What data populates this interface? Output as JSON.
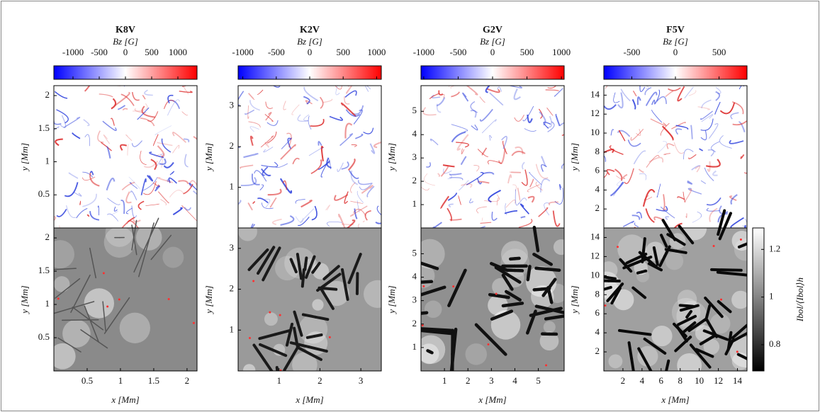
{
  "chart_data": [
    {
      "type": "image",
      "title": "K8V",
      "colorbar_label": "Bz [G]",
      "colorbar_lim": [
        -1365,
        1365
      ],
      "colorbar_ticks": [
        -1000,
        -500,
        0,
        500,
        1000
      ],
      "colorbar_colors": [
        "#0000ff",
        "#ffffff",
        "#ff0000"
      ],
      "xlabel": "x [Mm]",
      "ylabel": "y [Mm]",
      "xlim": [
        0,
        2.15
      ],
      "xticks": [
        0.5,
        1,
        1.5,
        2
      ],
      "ylim": [
        0,
        2.15
      ],
      "yticks": [
        0.5,
        1,
        1.5,
        2
      ]
    },
    {
      "type": "image",
      "title": "K2V",
      "colorbar_label": "Bz [G]",
      "colorbar_lim": [
        -1070,
        1070
      ],
      "colorbar_ticks": [
        -1000,
        -500,
        0,
        500,
        1000
      ],
      "colorbar_colors": [
        "#0000ff",
        "#ffffff",
        "#ff0000"
      ],
      "xlabel": "x [Mm]",
      "ylabel": "y [Mm]",
      "xlim": [
        0,
        3.5
      ],
      "xticks": [
        1,
        2,
        3
      ],
      "ylim": [
        0,
        3.5
      ],
      "yticks": [
        1,
        2,
        3
      ]
    },
    {
      "type": "image",
      "title": "G2V",
      "colorbar_label": "Bz [G]",
      "colorbar_lim": [
        -1040,
        1040
      ],
      "colorbar_ticks": [
        -1000,
        -500,
        0,
        500,
        1000
      ],
      "colorbar_colors": [
        "#0000ff",
        "#ffffff",
        "#ff0000"
      ],
      "xlabel": "x [Mm]",
      "ylabel": "y [Mm]",
      "xlim": [
        0,
        6.1
      ],
      "xticks": [
        1,
        2,
        3,
        4,
        5
      ],
      "ylim": [
        0,
        6.1
      ],
      "yticks": [
        1,
        2,
        3,
        4,
        5
      ]
    },
    {
      "type": "image",
      "title": "F5V",
      "colorbar_label": "Bz [G]",
      "colorbar_lim": [
        -820,
        820
      ],
      "colorbar_ticks": [
        -500,
        0,
        500
      ],
      "colorbar_colors": [
        "#0000ff",
        "#ffffff",
        "#ff0000"
      ],
      "xlabel": "x [Mm]",
      "ylabel": "y [Mm]",
      "xlim": [
        0,
        15
      ],
      "xticks": [
        2,
        4,
        6,
        8,
        10,
        12,
        14
      ],
      "ylim": [
        0,
        15
      ],
      "yticks": [
        2,
        4,
        6,
        8,
        10,
        12,
        14
      ]
    }
  ],
  "intensity_colorbar": {
    "label": "Ibol/⟨Ibol⟩h",
    "lim": [
      0.69,
      1.29
    ],
    "ticks": [
      0.8,
      1,
      1.2
    ],
    "colors": [
      "#000000",
      "#ffffff"
    ]
  }
}
